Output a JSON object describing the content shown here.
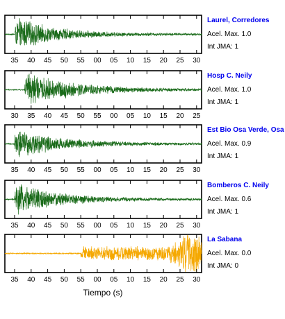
{
  "chart_data": {
    "type": "line",
    "xlabel": "Tiempo (s)",
    "panels": [
      {
        "station": "Laurel, Corredores",
        "acel_label": "Acel. Max. 1.0",
        "jma_label": "Int JMA: 1",
        "color": "#1a6b1a",
        "tick_labels": [
          "35",
          "40",
          "45",
          "50",
          "55",
          "00",
          "05",
          "10",
          "15",
          "20",
          "25",
          "30"
        ],
        "tick_start": 35,
        "onset": 35,
        "peak_amp": 1.0,
        "decay_rate": 0.085
      },
      {
        "station": "Hosp C. Neily",
        "acel_label": "Acel. Max. 1.0",
        "jma_label": "Int JMA: 1",
        "color": "#1a6b1a",
        "tick_labels": [
          "30",
          "35",
          "40",
          "45",
          "50",
          "55",
          "00",
          "05",
          "10",
          "15",
          "20",
          "25"
        ],
        "tick_start": 30,
        "onset": 33,
        "peak_amp": 1.0,
        "decay_rate": 0.07
      },
      {
        "station": "Est Bio Osa Verde, Osa",
        "acel_label": "Acel. Max. 0.9",
        "jma_label": "Int JMA: 1",
        "color": "#1a6b1a",
        "tick_labels": [
          "35",
          "40",
          "45",
          "50",
          "55",
          "00",
          "05",
          "10",
          "15",
          "20",
          "25",
          "30"
        ],
        "tick_start": 35,
        "onset": 35,
        "peak_amp": 0.9,
        "decay_rate": 0.075
      },
      {
        "station": "Bomberos C. Neily",
        "acel_label": "Acel. Max. 0.6",
        "jma_label": "Int JMA: 1",
        "color": "#1a6b1a",
        "tick_labels": [
          "35",
          "40",
          "45",
          "50",
          "55",
          "00",
          "05",
          "10",
          "15",
          "20",
          "25",
          "30"
        ],
        "tick_start": 35,
        "onset": 35,
        "peak_amp": 1.0,
        "decay_rate": 0.08
      },
      {
        "station": "La Sabana",
        "acel_label": "Acel. Max. 0.0",
        "jma_label": "Int JMA: 0",
        "color": "#f5a800",
        "tick_labels": [
          "35",
          "40",
          "45",
          "50",
          "55",
          "00",
          "05",
          "10",
          "15",
          "20",
          "25",
          "30"
        ],
        "tick_start": 35,
        "onset": 55,
        "peak_amp": 0.85,
        "decay_rate": 0.0,
        "late_burst": 88
      }
    ]
  }
}
